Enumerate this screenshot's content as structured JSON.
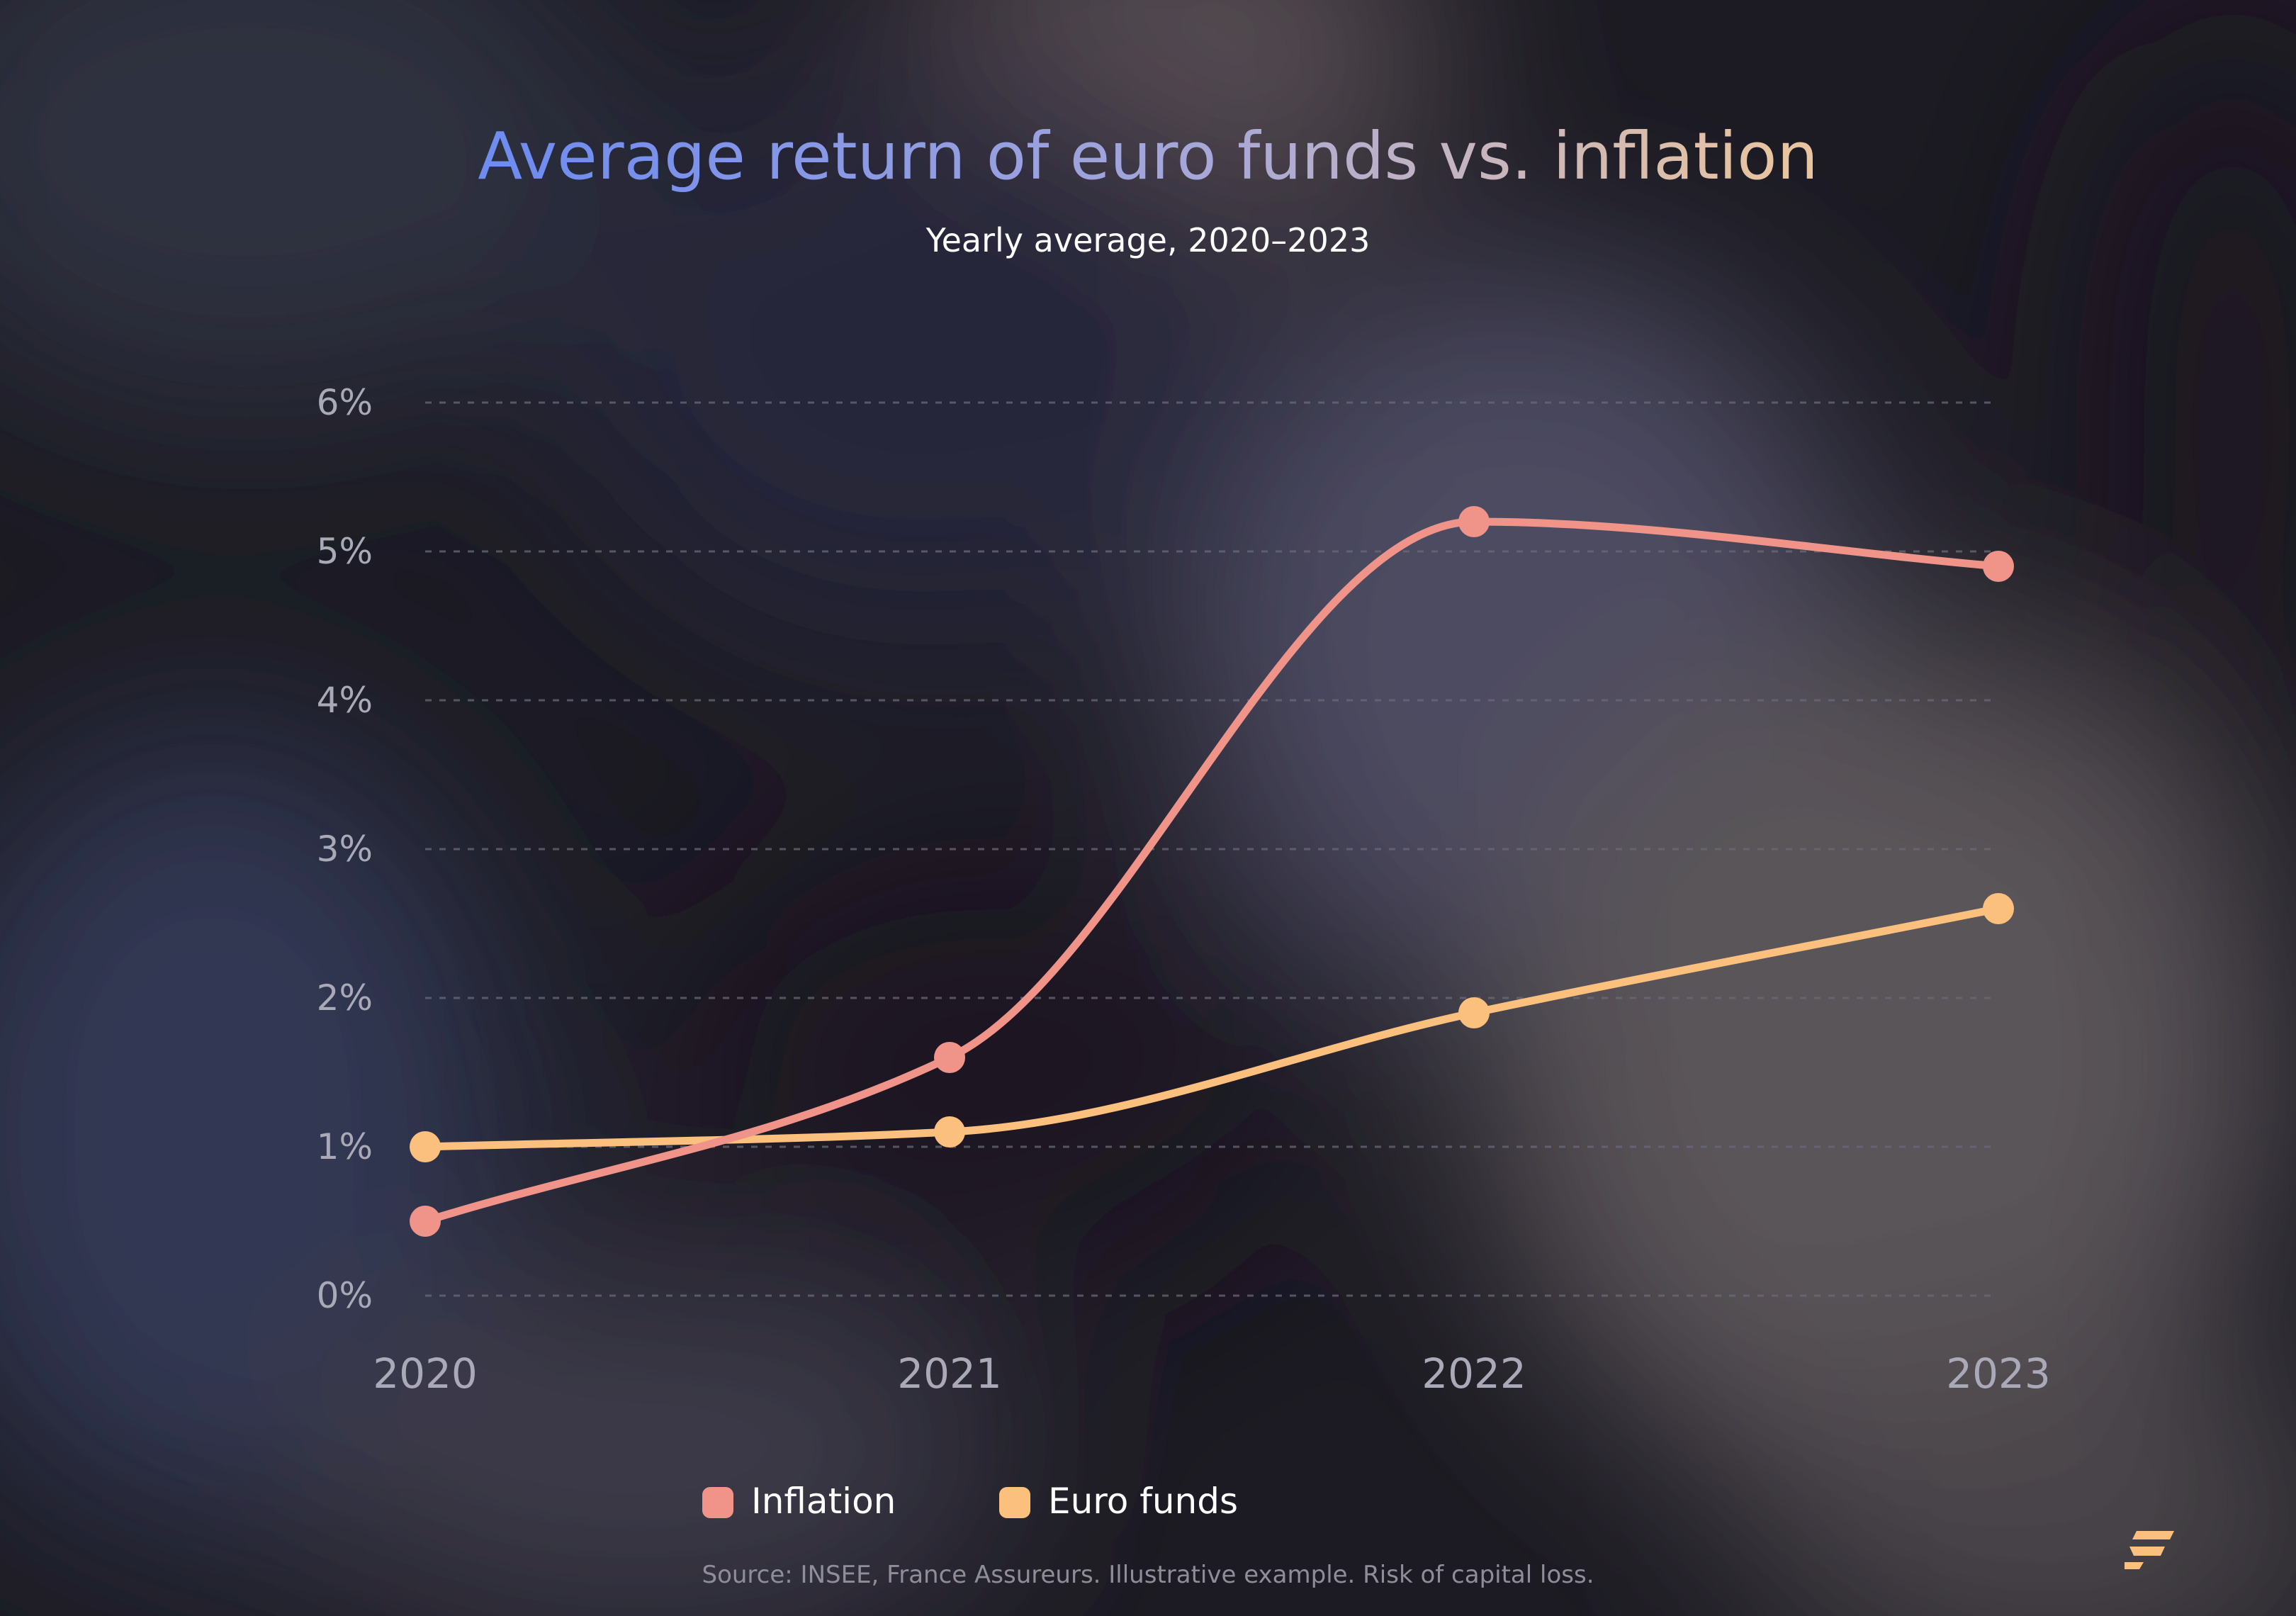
{
  "chart_data": {
    "type": "line",
    "title": "Average return of euro funds vs. inflation",
    "subtitle": "Yearly average, 2020–2023",
    "x": [
      "2020",
      "2021",
      "2022",
      "2023"
    ],
    "series": [
      {
        "name": "Inflation",
        "values": [
          0.5,
          1.6,
          5.2,
          4.9
        ],
        "color": "#f0948a"
      },
      {
        "name": "Euro funds",
        "values": [
          1.0,
          1.1,
          1.9,
          2.6
        ],
        "color": "#fbc07e"
      }
    ],
    "y_ticks": [
      "0%",
      "1%",
      "2%",
      "3%",
      "4%",
      "5%",
      "6%"
    ],
    "ylim": [
      0,
      6
    ],
    "grid": true,
    "grid_style": "dashed",
    "legend_position": "bottom-center",
    "source": "Source: INSEE, France Assureurs. Illustrative example. Risk of capital loss.",
    "colors": {
      "title_gradient_start": "#6f8cf0",
      "title_gradient_mid": "#a8a8d8",
      "title_gradient_end": "#e8c4a0",
      "axis_text": "#a9a9b8",
      "grid": "#6a6a78",
      "logo": "#fbc07e"
    }
  }
}
